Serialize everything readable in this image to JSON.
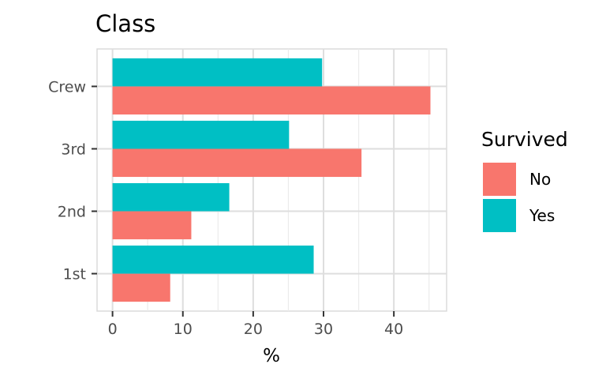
{
  "chart_data": {
    "type": "bar",
    "orientation": "horizontal",
    "title": "Class",
    "xlabel": "%",
    "ylabel": "",
    "categories": [
      "1st",
      "2nd",
      "3rd",
      "Crew"
    ],
    "series": [
      {
        "name": "No",
        "color": "#F8766D",
        "values": [
          8.2,
          11.2,
          35.4,
          45.2
        ]
      },
      {
        "name": "Yes",
        "color": "#00BFC4",
        "values": [
          28.6,
          16.6,
          25.1,
          29.8
        ]
      }
    ],
    "xlim": [
      -2.2,
      47.5
    ],
    "xticks": [
      "0",
      "10",
      "20",
      "30",
      "40"
    ],
    "xtick_values": [
      0,
      10,
      20,
      30,
      40
    ],
    "grid": true,
    "legend": {
      "title": "Survived",
      "position": "right",
      "entries": [
        "No",
        "Yes"
      ]
    }
  }
}
